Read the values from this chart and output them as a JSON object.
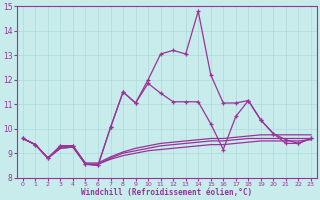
{
  "xlabel": "Windchill (Refroidissement éolien,°C)",
  "background_color": "#c8ecec",
  "grid_color": "#b0d8d8",
  "line_color": "#993399",
  "xlim": [
    -0.5,
    23.5
  ],
  "ylim": [
    8,
    15
  ],
  "xticks": [
    0,
    1,
    2,
    3,
    4,
    5,
    6,
    7,
    8,
    9,
    10,
    11,
    12,
    13,
    14,
    15,
    16,
    17,
    18,
    19,
    20,
    21,
    22,
    23
  ],
  "yticks": [
    8,
    9,
    10,
    11,
    12,
    13,
    14,
    15
  ],
  "line1_y": [
    9.6,
    9.35,
    8.8,
    9.3,
    9.3,
    8.55,
    8.5,
    10.05,
    11.5,
    11.05,
    11.85,
    11.45,
    11.1,
    11.1,
    11.1,
    10.2,
    9.15,
    10.5,
    11.15,
    10.35,
    9.8,
    9.55,
    9.4,
    9.6
  ],
  "line2_y": [
    9.6,
    9.35,
    8.8,
    9.3,
    9.3,
    8.55,
    8.5,
    10.05,
    11.5,
    11.05,
    12.0,
    13.05,
    13.2,
    13.05,
    14.8,
    12.2,
    11.05,
    11.05,
    11.15,
    10.35,
    9.8,
    9.4,
    9.4,
    9.6
  ],
  "flat1_y": [
    9.6,
    9.35,
    8.8,
    9.2,
    9.25,
    8.55,
    8.55,
    8.75,
    8.9,
    9.0,
    9.1,
    9.15,
    9.2,
    9.25,
    9.3,
    9.35,
    9.35,
    9.4,
    9.45,
    9.5,
    9.5,
    9.5,
    9.5,
    9.55
  ],
  "flat2_y": [
    9.6,
    9.35,
    8.8,
    9.2,
    9.25,
    8.55,
    8.55,
    8.8,
    9.0,
    9.1,
    9.2,
    9.3,
    9.35,
    9.4,
    9.45,
    9.5,
    9.5,
    9.55,
    9.6,
    9.6,
    9.6,
    9.6,
    9.6,
    9.6
  ],
  "flat3_y": [
    9.6,
    9.35,
    8.8,
    9.25,
    9.3,
    8.6,
    8.6,
    8.85,
    9.05,
    9.2,
    9.3,
    9.4,
    9.45,
    9.5,
    9.55,
    9.6,
    9.6,
    9.65,
    9.7,
    9.75,
    9.75,
    9.75,
    9.75,
    9.75
  ]
}
